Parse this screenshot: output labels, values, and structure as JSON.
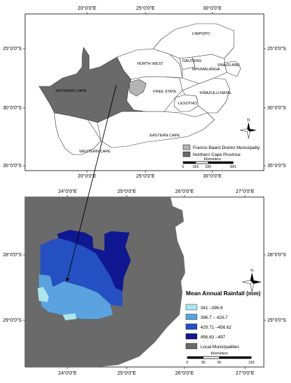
{
  "top_map": {
    "lon_labels": [
      "20°0'0\"E",
      "25°0'0\"E",
      "30°0'0\"E"
    ],
    "lat_labels": [
      "25°0'0\"S",
      "30°0'0\"S",
      "35°0'0\"S"
    ],
    "provinces": [
      "LIMPOPO",
      "NORTH WEST",
      "GAUTENG",
      "MPUMALANGA",
      "SWAZILAND",
      "NOTHERN CAPE",
      "FREE STATE",
      "KWAZULU-NATAL",
      "LESOTHO",
      "EASTERN CAPE",
      "WESTERN CAPE"
    ],
    "legend": {
      "items": [
        {
          "label": "Francis Baard District Municipality",
          "color": "#b4b4b4"
        },
        {
          "label": "Northern Cape Province",
          "color": "#6a6a6a"
        }
      ]
    },
    "scale": {
      "unit": "Kilometers",
      "ticks": [
        "0",
        "165",
        "330",
        "660"
      ]
    },
    "colors": {
      "land": "#ffffff",
      "northern_cape": "#6a6a6a",
      "francis_baard": "#b4b4b4"
    }
  },
  "bottom_map": {
    "lon_labels": [
      "24°0'0\"E",
      "25°0'0\"E",
      "26°0'0\"E",
      "27°0'0\"E"
    ],
    "lat_labels": [
      "28°0'0\"S",
      "29°0'0\"S"
    ],
    "legend": {
      "title": "Mean Annual Rainfall (mm)",
      "items": [
        {
          "label": "341 –396.6",
          "color": "#aee6ee"
        },
        {
          "label": "396.7 – 429.7",
          "color": "#5aa3e0"
        },
        {
          "label": "429.71 –456.62",
          "color": "#2550c2"
        },
        {
          "label": "456.63 –497",
          "color": "#0f1890"
        },
        {
          "label": "Local Municipalities",
          "color": "#6a6a6a"
        }
      ]
    },
    "scale": {
      "unit": "Kilometers",
      "ticks": [
        "0",
        "30",
        "60",
        "120"
      ]
    }
  },
  "north_arrow_label": "N"
}
